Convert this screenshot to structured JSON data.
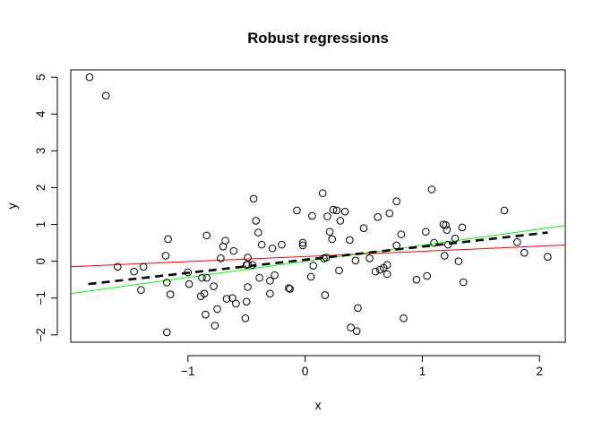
{
  "chart_data": {
    "type": "scatter",
    "title": "Robust regressions",
    "xlabel": "x",
    "ylabel": "y",
    "xlim": [
      -2.0,
      2.22
    ],
    "ylim": [
      -2.2,
      5.2
    ],
    "x_ticks": [
      -1,
      0,
      1,
      2
    ],
    "y_ticks": [
      -2,
      -1,
      0,
      1,
      2,
      3,
      4,
      5
    ],
    "grid": false,
    "legend": "none",
    "points": [
      [
        -1.84,
        5.0
      ],
      [
        -1.7,
        4.5
      ],
      [
        -1.6,
        -0.15
      ],
      [
        -1.46,
        -0.28
      ],
      [
        -1.4,
        -0.78
      ],
      [
        -1.38,
        -0.15
      ],
      [
        -1.19,
        0.15
      ],
      [
        -1.18,
        -0.58
      ],
      [
        -1.17,
        0.6
      ],
      [
        -1.15,
        -0.9
      ],
      [
        -1.18,
        -1.93
      ],
      [
        -1.0,
        -0.3
      ],
      [
        -0.99,
        -0.62
      ],
      [
        -0.89,
        -0.95
      ],
      [
        -0.88,
        -0.45
      ],
      [
        -0.86,
        -0.88
      ],
      [
        -0.84,
        -0.45
      ],
      [
        -0.85,
        -1.45
      ],
      [
        -0.84,
        0.7
      ],
      [
        -0.78,
        -0.68
      ],
      [
        -0.77,
        -1.75
      ],
      [
        -0.75,
        -1.3
      ],
      [
        -0.72,
        0.08
      ],
      [
        -0.7,
        0.4
      ],
      [
        -0.68,
        0.56
      ],
      [
        -0.67,
        -1.02
      ],
      [
        -0.62,
        -1.0
      ],
      [
        -0.61,
        0.28
      ],
      [
        -0.59,
        -1.15
      ],
      [
        -0.51,
        -1.55
      ],
      [
        -0.5,
        -0.1
      ],
      [
        -0.49,
        0.1
      ],
      [
        -0.49,
        -0.08
      ],
      [
        -0.49,
        -0.7
      ],
      [
        -0.5,
        -1.1
      ],
      [
        -0.45,
        -0.1
      ],
      [
        -0.44,
        1.7
      ],
      [
        -0.42,
        1.1
      ],
      [
        -0.4,
        0.78
      ],
      [
        -0.39,
        -0.45
      ],
      [
        -0.37,
        0.45
      ],
      [
        -0.3,
        -0.53
      ],
      [
        -0.3,
        -0.88
      ],
      [
        -0.28,
        0.35
      ],
      [
        -0.26,
        -0.38
      ],
      [
        -0.2,
        0.45
      ],
      [
        -0.14,
        -0.73
      ],
      [
        -0.13,
        -0.75
      ],
      [
        -0.07,
        1.38
      ],
      [
        -0.02,
        0.43
      ],
      [
        -0.02,
        0.5
      ],
      [
        0.05,
        -0.42
      ],
      [
        0.06,
        1.23
      ],
      [
        0.07,
        -0.12
      ],
      [
        0.15,
        1.85
      ],
      [
        0.16,
        0.08
      ],
      [
        0.17,
        -0.92
      ],
      [
        0.18,
        0.1
      ],
      [
        0.19,
        1.22
      ],
      [
        0.21,
        0.8
      ],
      [
        0.23,
        0.6
      ],
      [
        0.24,
        1.4
      ],
      [
        0.27,
        1.38
      ],
      [
        0.29,
        -0.25
      ],
      [
        0.3,
        1.1
      ],
      [
        0.34,
        1.35
      ],
      [
        0.38,
        0.58
      ],
      [
        0.39,
        -1.8
      ],
      [
        0.43,
        0.02
      ],
      [
        0.44,
        -1.9
      ],
      [
        0.45,
        -1.27
      ],
      [
        0.5,
        0.9
      ],
      [
        0.55,
        0.08
      ],
      [
        0.6,
        -0.28
      ],
      [
        0.62,
        1.2
      ],
      [
        0.64,
        -0.23
      ],
      [
        0.67,
        -0.18
      ],
      [
        0.7,
        -0.35
      ],
      [
        0.7,
        -0.1
      ],
      [
        0.72,
        1.3
      ],
      [
        0.78,
        1.63
      ],
      [
        0.78,
        0.43
      ],
      [
        0.82,
        0.73
      ],
      [
        0.84,
        -1.55
      ],
      [
        0.95,
        -0.5
      ],
      [
        1.03,
        0.8
      ],
      [
        1.04,
        -0.4
      ],
      [
        1.08,
        1.95
      ],
      [
        1.1,
        0.5
      ],
      [
        1.18,
        1.0
      ],
      [
        1.19,
        0.15
      ],
      [
        1.2,
        0.98
      ],
      [
        1.21,
        0.85
      ],
      [
        1.22,
        0.45
      ],
      [
        1.28,
        0.62
      ],
      [
        1.31,
        0.0
      ],
      [
        1.34,
        0.92
      ],
      [
        1.35,
        -0.57
      ],
      [
        1.7,
        1.38
      ],
      [
        1.81,
        0.52
      ],
      [
        1.87,
        0.23
      ],
      [
        2.07,
        0.12
      ]
    ],
    "lines": [
      {
        "color": "#ff0000",
        "style": "solid",
        "x": [
          -2.0,
          2.22
        ],
        "y": [
          -0.15,
          0.44
        ]
      },
      {
        "color": "#00ff00",
        "style": "solid",
        "x": [
          -2.0,
          2.22
        ],
        "y": [
          -0.88,
          0.97
        ]
      },
      {
        "color": "#000000",
        "style": "dashed",
        "x": [
          -1.85,
          2.07
        ],
        "y": [
          -0.62,
          0.78
        ]
      }
    ]
  }
}
